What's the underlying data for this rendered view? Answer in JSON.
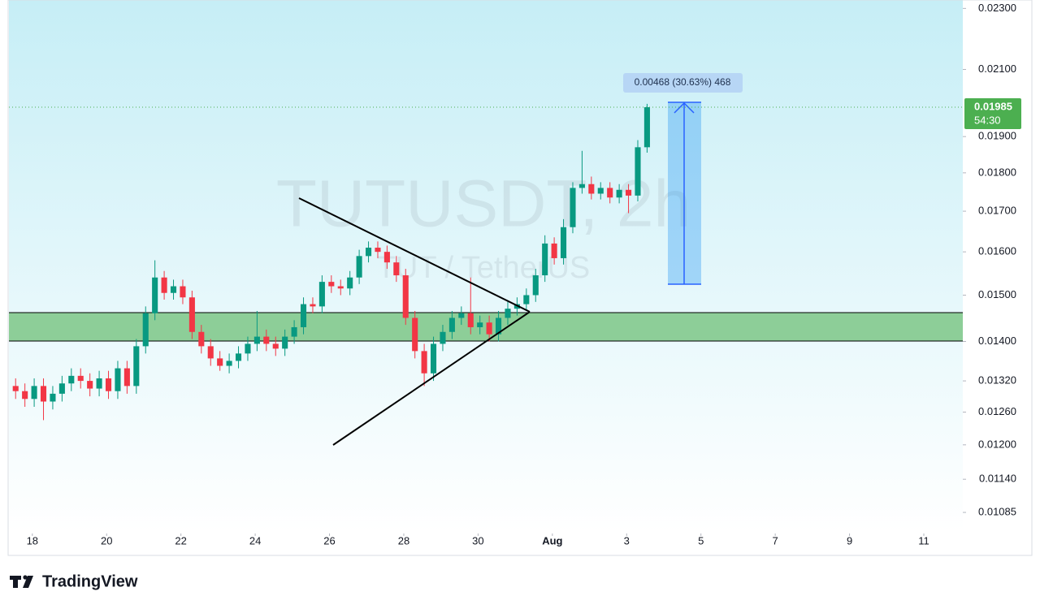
{
  "chart_data": {
    "type": "candlestick",
    "symbol_watermark": "TUTUSDT, 2h",
    "description_watermark": "TUT / TetherUS",
    "measure_label": "0.00468 (30.63%) 468",
    "last_price": {
      "value": 0.01985,
      "label": "0.01985"
    },
    "countdown": "54:30",
    "brand": "TradingView",
    "log_scale": true,
    "up_color": "#089981",
    "down_color": "#f23645",
    "xlim": [
      17.37,
      43.05
    ],
    "xticks": [
      18,
      20,
      22,
      24,
      26,
      28,
      30,
      {
        "value": 32,
        "label": "Aug"
      },
      {
        "value": 34,
        "label": "3"
      },
      {
        "value": 36,
        "label": "5"
      },
      {
        "value": 38,
        "label": "7"
      },
      {
        "value": 40,
        "label": "9"
      },
      {
        "value": 42,
        "label": "11"
      }
    ],
    "ylim": [
      0.01054,
      0.02329
    ],
    "yticks": [
      {
        "value": 0.023,
        "label": "0.02300"
      },
      {
        "value": 0.021,
        "label": "0.02100"
      },
      {
        "value": 0.019,
        "label": "0.01900"
      },
      {
        "value": 0.018,
        "label": "0.01800"
      },
      {
        "value": 0.017,
        "label": "0.01700"
      },
      {
        "value": 0.016,
        "label": "0.01600"
      },
      {
        "value": 0.015,
        "label": "0.01500"
      },
      {
        "value": 0.014,
        "label": "0.01400"
      },
      {
        "value": 0.0132,
        "label": "0.01320"
      },
      {
        "value": 0.0126,
        "label": "0.01260"
      },
      {
        "value": 0.012,
        "label": "0.01200"
      },
      {
        "value": 0.0114,
        "label": "0.01140"
      },
      {
        "value": 0.01085,
        "label": "0.01085"
      }
    ],
    "x": [
      17.55,
      17.8,
      18.05,
      18.3,
      18.55,
      18.8,
      19.05,
      19.3,
      19.55,
      19.8,
      20.05,
      20.3,
      20.55,
      20.8,
      21.05,
      21.3,
      21.55,
      21.8,
      22.05,
      22.3,
      22.55,
      22.8,
      23.05,
      23.3,
      23.55,
      23.8,
      24.05,
      24.3,
      24.55,
      24.8,
      25.05,
      25.3,
      25.55,
      25.8,
      26.05,
      26.3,
      26.55,
      26.8,
      27.05,
      27.3,
      27.55,
      27.8,
      28.05,
      28.3,
      28.55,
      28.8,
      29.05,
      29.3,
      29.55,
      29.8,
      30.05,
      30.3,
      30.55,
      30.8,
      31.05,
      31.3,
      31.55,
      31.8,
      32.05,
      32.3,
      32.55,
      32.8,
      33.05,
      33.3,
      33.55,
      33.8,
      34.05,
      34.3,
      34.55
    ],
    "open": [
      0.0131,
      0.013,
      0.01285,
      0.0131,
      0.0128,
      0.01295,
      0.01315,
      0.0133,
      0.0132,
      0.01305,
      0.01325,
      0.013,
      0.01345,
      0.0131,
      0.0139,
      0.0146,
      0.0154,
      0.01505,
      0.0152,
      0.01495,
      0.0142,
      0.0139,
      0.01365,
      0.0135,
      0.0136,
      0.01375,
      0.01395,
      0.0141,
      0.01395,
      0.01385,
      0.0141,
      0.0143,
      0.0148,
      0.01475,
      0.0153,
      0.0152,
      0.01515,
      0.0154,
      0.0159,
      0.0161,
      0.016,
      0.01575,
      0.01545,
      0.0145,
      0.0138,
      0.01335,
      0.01395,
      0.0142,
      0.0145,
      0.0146,
      0.0143,
      0.0144,
      0.01415,
      0.0145,
      0.0147,
      0.0148,
      0.015,
      0.01545,
      0.0162,
      0.01585,
      0.0166,
      0.0176,
      0.0177,
      0.01745,
      0.0176,
      0.01735,
      0.01755,
      0.0174,
      0.0187
    ],
    "high": [
      0.01325,
      0.01315,
      0.01325,
      0.01325,
      0.0131,
      0.0133,
      0.01345,
      0.01345,
      0.01335,
      0.0134,
      0.0134,
      0.0136,
      0.0136,
      0.01405,
      0.01475,
      0.0158,
      0.01555,
      0.01535,
      0.01535,
      0.0151,
      0.01435,
      0.01405,
      0.0138,
      0.01375,
      0.0139,
      0.0141,
      0.01465,
      0.01425,
      0.0141,
      0.01425,
      0.01445,
      0.01495,
      0.01495,
      0.01545,
      0.01545,
      0.01535,
      0.01555,
      0.01605,
      0.01625,
      0.01625,
      0.01615,
      0.0159,
      0.0156,
      0.01465,
      0.01395,
      0.0141,
      0.01435,
      0.01465,
      0.01475,
      0.0154,
      0.01455,
      0.01455,
      0.01465,
      0.01485,
      0.01495,
      0.01515,
      0.0156,
      0.0164,
      0.01635,
      0.0168,
      0.01775,
      0.0186,
      0.0179,
      0.01775,
      0.01775,
      0.0177,
      0.0177,
      0.0189,
      0.01995
    ],
    "low": [
      0.01285,
      0.0127,
      0.0127,
      0.01245,
      0.01265,
      0.0128,
      0.013,
      0.01305,
      0.0129,
      0.0129,
      0.01285,
      0.01285,
      0.01295,
      0.01295,
      0.01375,
      0.01445,
      0.0149,
      0.0149,
      0.0148,
      0.01405,
      0.01375,
      0.0135,
      0.0134,
      0.01335,
      0.01345,
      0.0136,
      0.0138,
      0.0138,
      0.0137,
      0.0137,
      0.01395,
      0.01415,
      0.0146,
      0.0146,
      0.01505,
      0.015,
      0.015,
      0.01525,
      0.01575,
      0.01585,
      0.0156,
      0.0153,
      0.01435,
      0.01365,
      0.0131,
      0.0132,
      0.0138,
      0.01405,
      0.01435,
      0.01415,
      0.01415,
      0.014,
      0.014,
      0.01435,
      0.01455,
      0.01465,
      0.01485,
      0.0153,
      0.0157,
      0.0157,
      0.01645,
      0.01745,
      0.0173,
      0.0173,
      0.0172,
      0.0172,
      0.01695,
      0.01725,
      0.01855
    ],
    "close": [
      0.013,
      0.01285,
      0.0131,
      0.0128,
      0.01295,
      0.01315,
      0.0133,
      0.0132,
      0.01305,
      0.01325,
      0.013,
      0.01345,
      0.0131,
      0.0139,
      0.0146,
      0.0154,
      0.01505,
      0.0152,
      0.01495,
      0.0142,
      0.0139,
      0.01365,
      0.0135,
      0.0136,
      0.01375,
      0.01395,
      0.0141,
      0.01395,
      0.01385,
      0.0141,
      0.0143,
      0.0148,
      0.01475,
      0.0153,
      0.0152,
      0.01515,
      0.0154,
      0.0159,
      0.0161,
      0.016,
      0.01575,
      0.01545,
      0.0145,
      0.0138,
      0.01335,
      0.01395,
      0.0142,
      0.0145,
      0.0146,
      0.0143,
      0.0144,
      0.01415,
      0.0145,
      0.0147,
      0.0148,
      0.015,
      0.01545,
      0.0162,
      0.01585,
      0.0166,
      0.0176,
      0.0177,
      0.01745,
      0.0176,
      0.01735,
      0.01755,
      0.0174,
      0.0187,
      0.01985
    ]
  }
}
